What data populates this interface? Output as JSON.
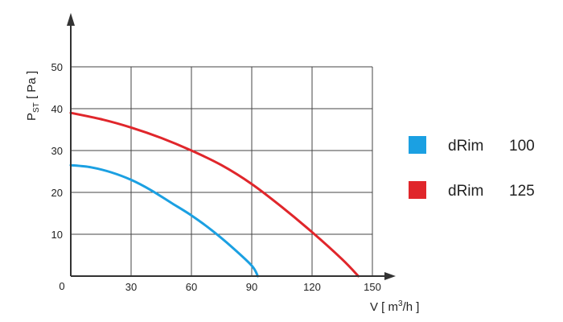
{
  "chart_data": {
    "type": "line",
    "title": "",
    "xlabel": {
      "main": "V [ m",
      "sup": "3",
      "rest": "/h ]"
    },
    "ylabel": {
      "main": "P",
      "sub": "ST",
      "rest": " [ Pa ]"
    },
    "xlim": [
      0,
      150
    ],
    "ylim": [
      0,
      50
    ],
    "origin_label": "0",
    "x_ticks": [
      30,
      60,
      90,
      120,
      150
    ],
    "y_ticks": [
      10,
      20,
      30,
      40,
      50
    ],
    "grid": true,
    "legend": "right",
    "series": [
      {
        "name": "dRim",
        "size": "100",
        "color": "#1ba0e2",
        "points": [
          [
            0,
            26.5
          ],
          [
            10,
            26
          ],
          [
            20,
            24.8
          ],
          [
            30,
            23
          ],
          [
            40,
            20.5
          ],
          [
            50,
            17.5
          ],
          [
            60,
            14.5
          ],
          [
            70,
            11
          ],
          [
            80,
            7
          ],
          [
            90,
            2.5
          ],
          [
            93,
            0
          ]
        ]
      },
      {
        "name": "dRim",
        "size": "125",
        "color": "#e0262b",
        "points": [
          [
            0,
            39
          ],
          [
            15,
            37.5
          ],
          [
            30,
            35.5
          ],
          [
            45,
            33
          ],
          [
            60,
            30
          ],
          [
            75,
            26.5
          ],
          [
            90,
            22
          ],
          [
            105,
            16.5
          ],
          [
            120,
            10.5
          ],
          [
            135,
            4
          ],
          [
            143,
            0
          ]
        ]
      }
    ]
  }
}
